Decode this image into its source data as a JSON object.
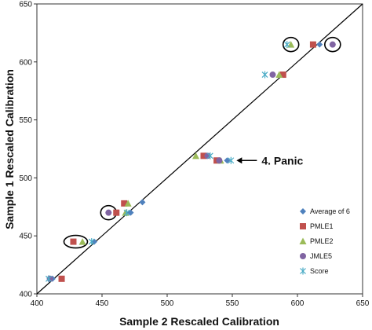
{
  "chart_data": {
    "type": "scatter",
    "title": "",
    "xlabel": "Sample 2 Rescaled Calibration",
    "ylabel": "Sample 1 Rescaled Calibration",
    "xlim": [
      400,
      650
    ],
    "ylim": [
      400,
      650
    ],
    "xticks": [
      "400",
      "450",
      "500",
      "550",
      "600",
      "650"
    ],
    "yticks": [
      "400",
      "450",
      "500",
      "550",
      "600",
      "650"
    ],
    "grid": false,
    "legend_position": "bottom-right",
    "reference_line": {
      "x": [
        400,
        650
      ],
      "y": [
        400,
        650
      ]
    },
    "annotation": {
      "text": "4. Panic",
      "arrow_to": [
        549,
        515
      ]
    },
    "circled_points": [
      [
        428,
        445
      ],
      [
        595,
        615
      ],
      [
        627,
        615
      ],
      [
        455,
        470
      ]
    ],
    "series": [
      {
        "name": "Average of 6",
        "marker": "diamond",
        "color": "#4f81bd",
        "points": [
          [
            412,
            413
          ],
          [
            444,
            445
          ],
          [
            472,
            470
          ],
          [
            481,
            479
          ],
          [
            546,
            515
          ],
          [
            617,
            615
          ]
        ]
      },
      {
        "name": "PMLE1",
        "marker": "square",
        "color": "#c0504d",
        "points": [
          [
            419,
            413
          ],
          [
            428,
            445
          ],
          [
            461,
            470
          ],
          [
            467,
            478
          ],
          [
            528,
            519
          ],
          [
            538,
            515
          ],
          [
            612,
            615
          ],
          [
            589,
            589
          ]
        ]
      },
      {
        "name": "PMLE2",
        "marker": "triangle",
        "color": "#9bbb59",
        "points": [
          [
            435,
            445
          ],
          [
            468,
            470
          ],
          [
            470,
            478
          ],
          [
            522,
            519
          ],
          [
            541,
            515
          ],
          [
            586,
            589
          ],
          [
            595,
            615
          ]
        ]
      },
      {
        "name": "JMLE5",
        "marker": "circle",
        "color": "#8064a2",
        "points": [
          [
            410,
            413
          ],
          [
            455,
            470
          ],
          [
            531,
            519
          ],
          [
            540,
            515
          ],
          [
            581,
            589
          ],
          [
            627,
            615
          ]
        ]
      },
      {
        "name": "Score",
        "marker": "asterisk",
        "color": "#4bacc6",
        "points": [
          [
            409,
            413
          ],
          [
            442,
            445
          ],
          [
            469,
            470
          ],
          [
            533,
            519
          ],
          [
            549,
            515
          ],
          [
            575,
            589
          ],
          [
            592,
            615
          ]
        ]
      }
    ]
  }
}
